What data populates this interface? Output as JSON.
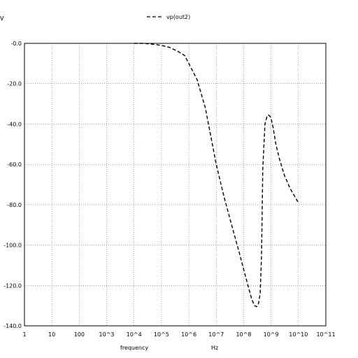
{
  "chart_data": {
    "type": "line",
    "title": "",
    "ylabel": "V",
    "xlabel": "frequency",
    "xunit": "Hz",
    "xscale": "log",
    "xlim": [
      1,
      100000000000
    ],
    "ylim": [
      -140,
      0
    ],
    "grid": true,
    "legend_position": "top-center",
    "y_ticks": [
      "-0.0",
      "-20.0",
      "-40.0",
      "-60.0",
      "-80.0",
      "-100.0",
      "-120.0",
      "-140.0"
    ],
    "y_tick_values": [
      0,
      -20,
      -40,
      -60,
      -80,
      -100,
      -120,
      -140
    ],
    "x_ticks": [
      "1",
      "10",
      "100",
      "10^3",
      "10^4",
      "10^5",
      "10^6",
      "10^7",
      "10^8",
      "10^9",
      "10^10",
      "10^11"
    ],
    "x_tick_values": [
      1,
      10,
      100,
      1000,
      10000,
      100000,
      1000000,
      10000000,
      100000000,
      1000000000,
      10000000000,
      100000000000
    ],
    "series": [
      {
        "name": "vp(out2)",
        "color": "#000000",
        "dash": "dashed",
        "x": [
          10000,
          20000,
          40000,
          100000,
          200000,
          400000,
          700000,
          1000000,
          2000000,
          4000000,
          10000000,
          20000000,
          40000000,
          70000000,
          100000000,
          150000000,
          200000000,
          250000000,
          300000000,
          350000000,
          400000000,
          450000000,
          500000000,
          600000000,
          700000000,
          800000000,
          900000000,
          1000000000,
          1200000000,
          1500000000,
          2000000000,
          3000000000,
          5000000000,
          10000000000
        ],
        "y": [
          0,
          0,
          -0.3,
          -1,
          -2,
          -4,
          -6,
          -10,
          -18,
          -32,
          -60,
          -77,
          -92,
          -104,
          -112,
          -121,
          -127,
          -130,
          -130.5,
          -129,
          -124,
          -105,
          -62,
          -40,
          -36.5,
          -35.5,
          -36,
          -37,
          -42,
          -50,
          -57,
          -65,
          -72,
          -79
        ]
      }
    ]
  }
}
